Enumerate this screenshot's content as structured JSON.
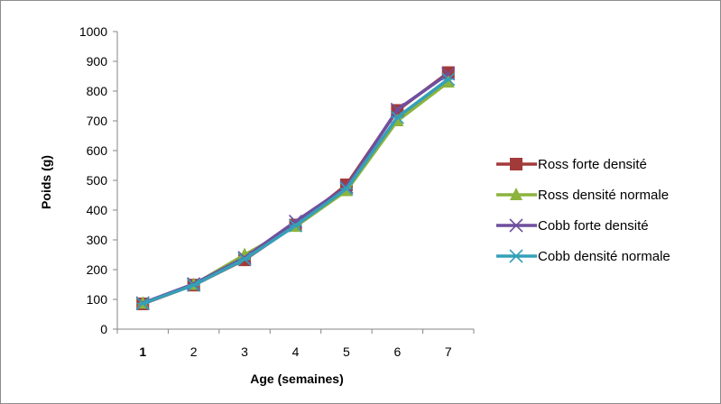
{
  "chart_data": {
    "type": "line",
    "title": "",
    "xlabel": "Age (semaines)",
    "ylabel": "Poids (g)",
    "categories": [
      "1",
      "2",
      "3",
      "4",
      "5",
      "6",
      "7"
    ],
    "ylim": [
      0,
      1000
    ],
    "yticks": [
      "0",
      "100",
      "200",
      "300",
      "400",
      "500",
      "600",
      "700",
      "800",
      "900",
      "1000"
    ],
    "grid": false,
    "legend_position": "right",
    "series": [
      {
        "name": "Ross forte densité",
        "color": "#a33a3a",
        "marker": "square",
        "values": [
          85,
          148,
          233,
          350,
          485,
          735,
          862
        ]
      },
      {
        "name": "Ross densité normale",
        "color": "#8cb33d",
        "marker": "triangle",
        "values": [
          87,
          150,
          250,
          345,
          465,
          700,
          830
        ]
      },
      {
        "name": "Cobb forte densité",
        "color": "#6f4f9e",
        "marker": "x",
        "values": [
          88,
          152,
          240,
          362,
          478,
          738,
          858
        ]
      },
      {
        "name": "Cobb densité normale",
        "color": "#35a0b8",
        "marker": "star",
        "values": [
          86,
          148,
          235,
          348,
          472,
          712,
          840
        ]
      }
    ]
  }
}
